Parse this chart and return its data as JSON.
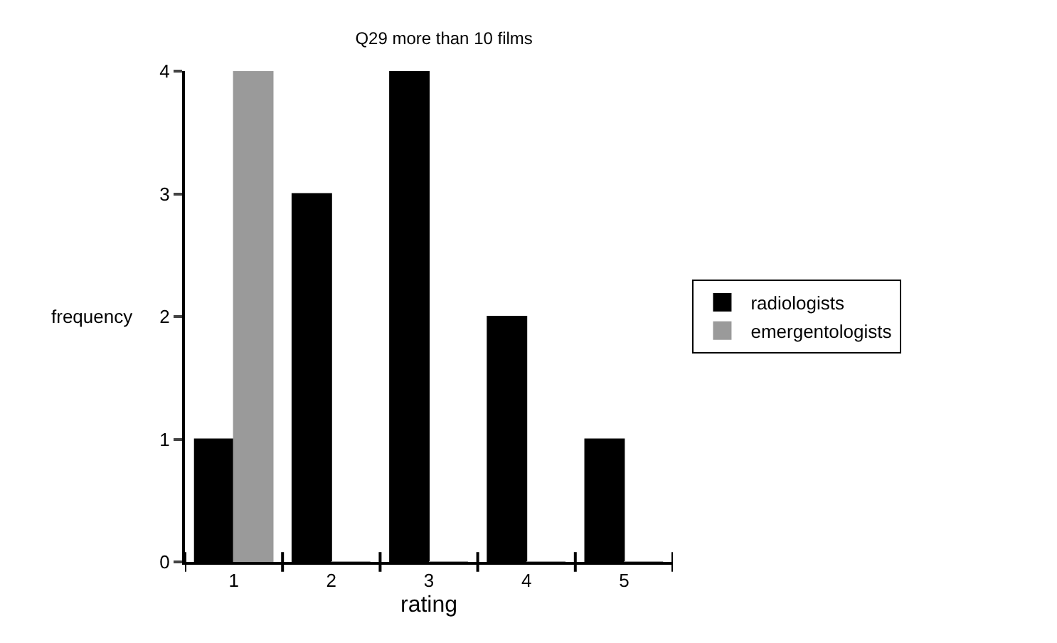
{
  "chart_data": {
    "type": "bar",
    "title": "Q29 more than 10 films",
    "xlabel": "rating",
    "ylabel": "frequency",
    "categories": [
      "1",
      "2",
      "3",
      "4",
      "5"
    ],
    "series": [
      {
        "name": "radiologists",
        "color": "#000000",
        "values": [
          1,
          3,
          4,
          2,
          1
        ]
      },
      {
        "name": "emergentologists",
        "color": "#9a9a9a",
        "values": [
          4,
          0,
          0,
          0,
          0
        ]
      }
    ],
    "ylim": [
      0,
      4
    ],
    "yticks": [
      0,
      1,
      2,
      3,
      4
    ],
    "legend": "right"
  }
}
